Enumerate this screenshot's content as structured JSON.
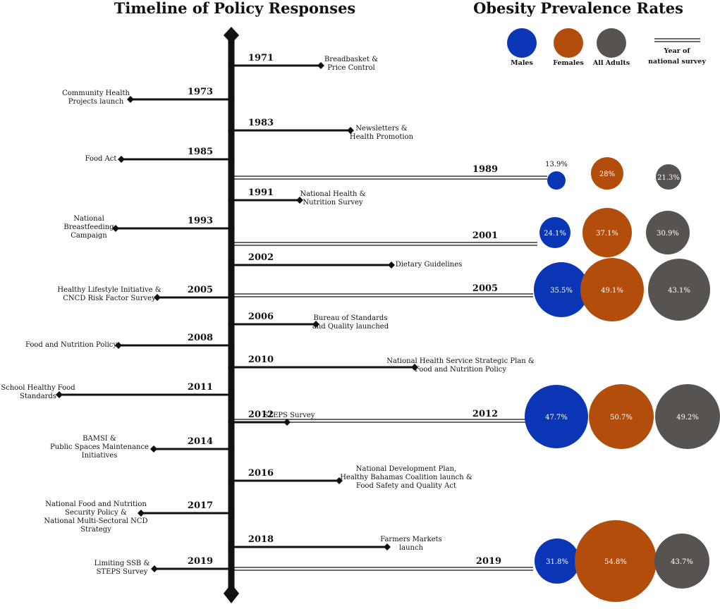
{
  "titles": {
    "left": "Timeline of Policy Responses",
    "right": "Obesity Prevalence Rates"
  },
  "legend": {
    "males": "Males",
    "females": "Females",
    "all_adults": "All Adults",
    "survey_line_1": "Year of",
    "survey_line_2": "national survey"
  },
  "colors": {
    "males": "#0a36b5",
    "females": "#b24d0c",
    "all_adults": "#575350",
    "line": "#111111"
  },
  "events": [
    {
      "year": "1971",
      "side": "right",
      "lines": [
        "Breadbasket &",
        "Price Control"
      ]
    },
    {
      "year": "1973",
      "side": "left",
      "lines": [
        "Community Health",
        "Projects launch"
      ]
    },
    {
      "year": "1983",
      "side": "right",
      "lines": [
        "Newsletters &",
        "Health Promotion"
      ]
    },
    {
      "year": "1985",
      "side": "left",
      "lines": [
        "Food Act"
      ]
    },
    {
      "year": "1991",
      "side": "right",
      "lines": [
        "National Health &",
        "Nutrition Survey"
      ]
    },
    {
      "year": "1993",
      "side": "left",
      "lines": [
        "National",
        "Breastfeeding",
        "Campaign"
      ]
    },
    {
      "year": "2002",
      "side": "right",
      "lines": [
        "Dietary Guidelines"
      ]
    },
    {
      "year": "2005",
      "side": "left",
      "lines": [
        "Healthy Lifestyle Initiative &",
        "CNCD Risk Factor Survey"
      ]
    },
    {
      "year": "2006",
      "side": "right",
      "lines": [
        "Bureau of Standards",
        "and Quality launched"
      ]
    },
    {
      "year": "2008",
      "side": "left",
      "lines": [
        "Food and Nutrition Policy"
      ]
    },
    {
      "year": "2010",
      "side": "right",
      "lines": [
        "National Health Service Strategic Plan &",
        "Food and Nutrition Policy"
      ]
    },
    {
      "year": "2011",
      "side": "left",
      "lines": [
        "School Healthy Food",
        "Standards"
      ]
    },
    {
      "year": "2012",
      "side": "right",
      "lines": [
        "STEPS Survey"
      ]
    },
    {
      "year": "2014",
      "side": "left",
      "lines": [
        "BAMSI &",
        "Public Spaces Maintenance",
        "Initiatives"
      ]
    },
    {
      "year": "2016",
      "side": "right",
      "lines": [
        "National Development Plan,",
        "Healthy Bahamas Coalition launch &",
        "Food Safety and Quality Act"
      ]
    },
    {
      "year": "2017",
      "side": "left",
      "lines": [
        "National Food and Nutrition",
        "Security Policy &",
        "National Multi-Sectoral NCD",
        "Strategy"
      ]
    },
    {
      "year": "2018",
      "side": "right",
      "lines": [
        "Farmers Markets",
        "launch"
      ]
    },
    {
      "year": "2019",
      "side": "left",
      "lines": [
        "Limiting SSB &",
        "STEPS Survey"
      ]
    }
  ],
  "surveys": [
    {
      "year": "1989",
      "males": "13.9%",
      "females": "28%",
      "all_adults": "21.3%"
    },
    {
      "year": "2001",
      "males": "24.1%",
      "females": "37.1%",
      "all_adults": "30.9%"
    },
    {
      "year": "2005",
      "males": "35.5%",
      "females": "49.1%",
      "all_adults": "43.1%"
    },
    {
      "year": "2012",
      "males": "47.7%",
      "females": "50.7%",
      "all_adults": "49.2%"
    },
    {
      "year": "2019",
      "males": "31.8%",
      "females": "54.8%",
      "all_adults": "43.7%"
    }
  ]
}
